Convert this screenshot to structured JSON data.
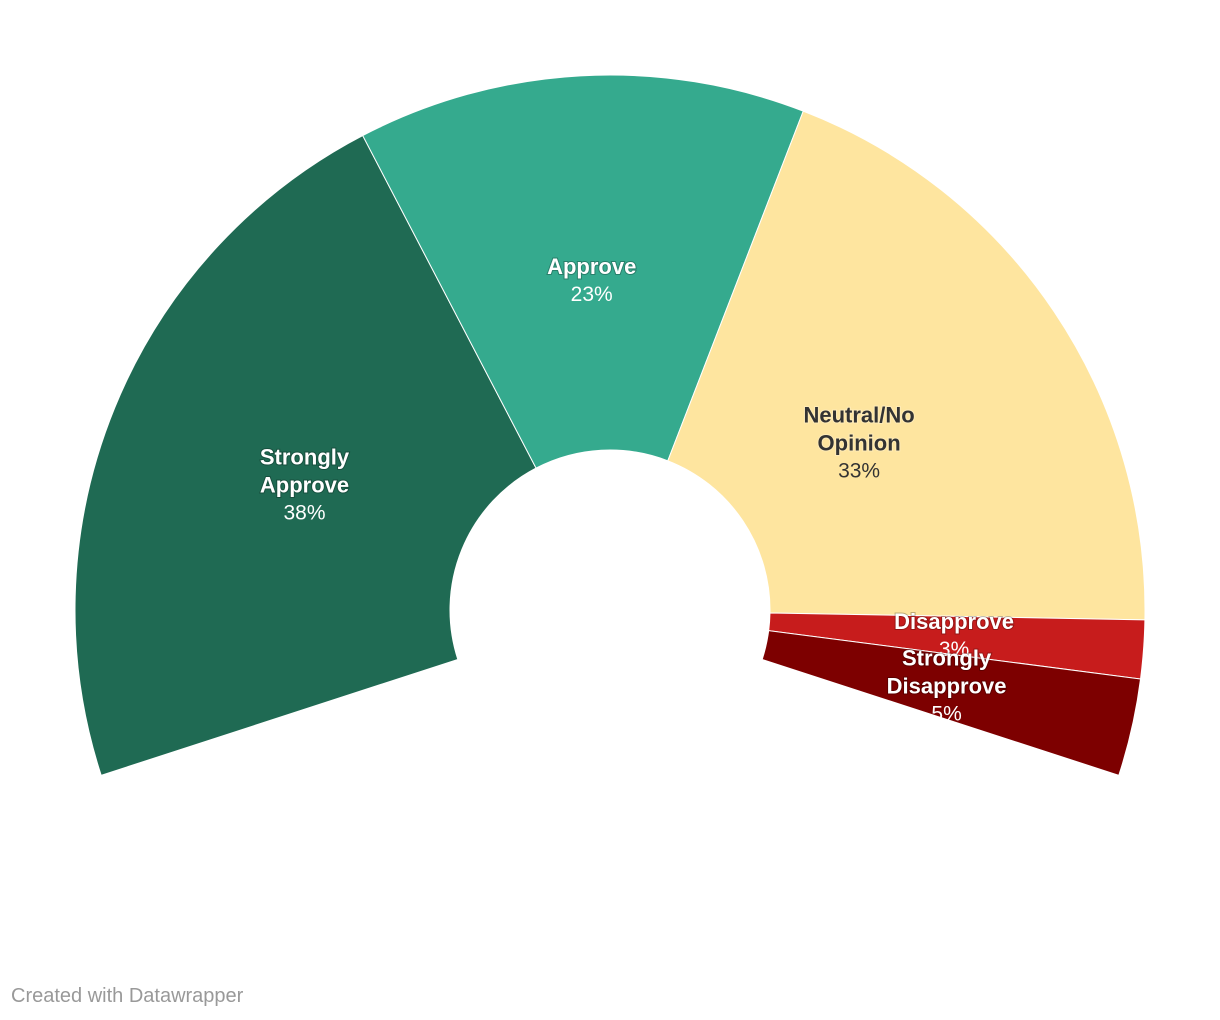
{
  "chart_data": {
    "type": "pie",
    "variant": "semi-donut",
    "slices": [
      {
        "label": [
          "Strongly",
          "Approve"
        ],
        "value": 38,
        "display": "38%",
        "color": "#1f6a53",
        "text_color": "#ffffff"
      },
      {
        "label": [
          "Approve"
        ],
        "value": 23,
        "display": "23%",
        "color": "#35aa8e",
        "text_color": "#ffffff"
      },
      {
        "label": [
          "Neutral/No",
          "Opinion"
        ],
        "value": 33,
        "display": "33%",
        "color": "#fee59f",
        "text_color": "#333333"
      },
      {
        "label": [
          "Disapprove"
        ],
        "value": 3,
        "display": "3%",
        "color": "#c71c1c",
        "text_color": "#ffffff"
      },
      {
        "label": [
          "Strongly",
          "Disapprove"
        ],
        "value": 5,
        "display": "5%",
        "color": "#7d0000",
        "text_color": "#ffffff"
      }
    ]
  },
  "footer": {
    "credit": "Created with Datawrapper"
  }
}
